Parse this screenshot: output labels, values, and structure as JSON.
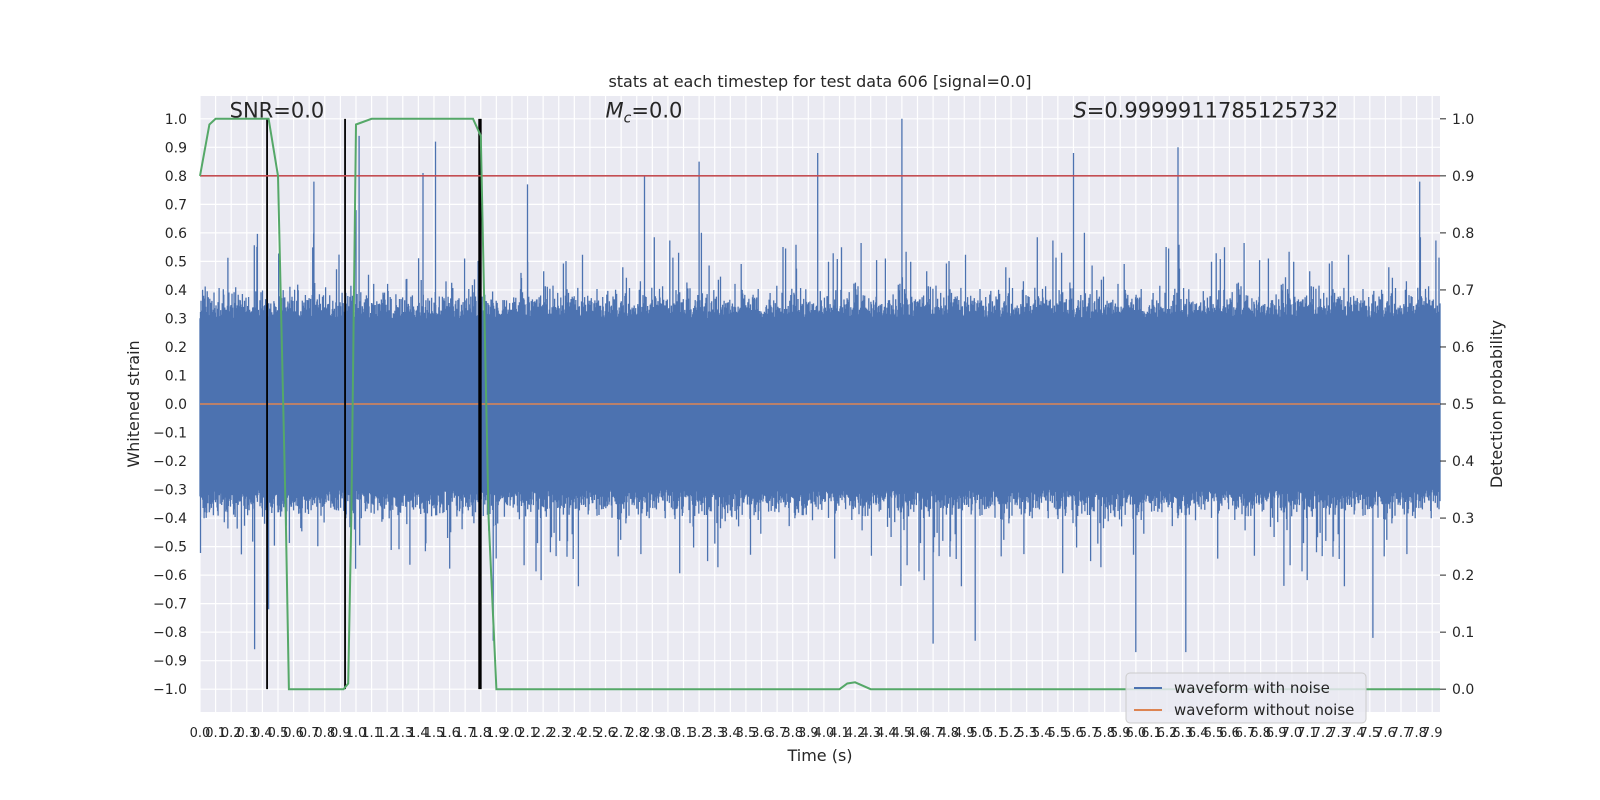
{
  "chart_data": {
    "type": "line",
    "title": "stats at each timestep for test data 606 [signal=0.0]",
    "xlabel": "Time (s)",
    "ylabel": "Whitened strain",
    "y2label": "Detection probability",
    "xlim": [
      0.0,
      7.95
    ],
    "ylim": [
      -1.08,
      1.08
    ],
    "y2lim": [
      -0.04,
      1.04
    ],
    "x_ticks": [
      0.0,
      0.1,
      0.2,
      0.3,
      0.4,
      0.5,
      0.6,
      0.7,
      0.8,
      0.9,
      1.0,
      1.1,
      1.2,
      1.3,
      1.4,
      1.5,
      1.6,
      1.7,
      1.8,
      1.9,
      2.0,
      2.1,
      2.2,
      2.3,
      2.4,
      2.5,
      2.6,
      2.7,
      2.8,
      2.9,
      3.0,
      3.1,
      3.2,
      3.3,
      3.4,
      3.5,
      3.6,
      3.7,
      3.8,
      3.9,
      4.0,
      4.1,
      4.2,
      4.3,
      4.4,
      4.5,
      4.6,
      4.7,
      4.8,
      4.9,
      5.0,
      5.1,
      5.2,
      5.3,
      5.4,
      5.5,
      5.6,
      5.7,
      5.8,
      5.9,
      6.0,
      6.1,
      6.2,
      6.3,
      6.4,
      6.5,
      6.6,
      6.7,
      6.8,
      6.9,
      7.0,
      7.1,
      7.2,
      7.3,
      7.4,
      7.5,
      7.6,
      7.7,
      7.8,
      7.9
    ],
    "x_tick_labels": [
      "0.0",
      "0.1",
      "0.2",
      "0.3",
      "0.4",
      "0.5",
      "0.6",
      "0.7",
      "0.8",
      "0.9",
      "1.0",
      "1.1",
      "1.2",
      "1.3",
      "1.4",
      "1.5",
      "1.6",
      "1.7",
      "1.8",
      "1.9",
      "2.0",
      "2.1",
      "2.2",
      "2.3",
      "2.4",
      "2.5",
      "2.6",
      "2.7",
      "2.8",
      "2.9",
      "3.0",
      "3.1",
      "3.2",
      "3.3",
      "3.4",
      "3.5",
      "3.6",
      "3.7",
      "3.8",
      "3.9",
      "4.0",
      "4.1",
      "4.2",
      "4.3",
      "4.4",
      "4.5",
      "4.6",
      "4.7",
      "4.8",
      "4.9",
      "5.0",
      "5.1",
      "5.2",
      "5.3",
      "5.4",
      "5.5",
      "5.6",
      "5.7",
      "5.8",
      "5.9",
      "6.0",
      "6.1",
      "6.2",
      "6.3",
      "6.4",
      "6.5",
      "6.6",
      "6.7",
      "6.8",
      "6.9",
      "7.0",
      "7.1",
      "7.2",
      "7.3",
      "7.4",
      "7.5",
      "7.6",
      "7.7",
      "7.8",
      "7.9"
    ],
    "y_ticks": [
      1.0,
      0.9,
      0.8,
      0.7,
      0.6,
      0.5,
      0.4,
      0.3,
      0.2,
      0.1,
      0.0,
      -0.1,
      -0.2,
      -0.3,
      -0.4,
      -0.5,
      -0.6,
      -0.7,
      -0.8,
      -0.9,
      -1.0
    ],
    "y_tick_labels": [
      "1.0",
      "0.9",
      "0.8",
      "0.7",
      "0.6",
      "0.5",
      "0.4",
      "0.3",
      "0.2",
      "0.1",
      "0.0",
      "−0.1",
      "−0.2",
      "−0.3",
      "−0.4",
      "−0.5",
      "−0.6",
      "−0.7",
      "−0.8",
      "−0.9",
      "−1.0"
    ],
    "y2_ticks": [
      1.0,
      0.9,
      0.8,
      0.7,
      0.6,
      0.5,
      0.4,
      0.3,
      0.2,
      0.1,
      0.0
    ],
    "y2_tick_labels": [
      "1.0",
      "0.9",
      "0.8",
      "0.7",
      "0.6",
      "0.5",
      "0.4",
      "0.3",
      "0.2",
      "0.1",
      "0.0"
    ],
    "annotations": [
      {
        "text": "SNR=0.0",
        "x": 0.19,
        "y": 1.03
      },
      {
        "text_html": "M_c=0.0",
        "prefix": "M",
        "subscript": "c",
        "suffix": "=0.0",
        "x": 2.6,
        "y": 1.03
      },
      {
        "prefix": "S",
        "suffix": "=0.9999911785125732",
        "x": 5.6,
        "y": 1.03
      }
    ],
    "legend": {
      "placement": "lower-right",
      "entries": [
        {
          "label": "waveform with noise",
          "color": "#4c72b0"
        },
        {
          "label": "waveform without noise",
          "color": "#dd8452"
        }
      ]
    },
    "series": [
      {
        "name": "waveform with noise",
        "axis": "left",
        "color": "#4c72b0",
        "kind": "noise-strain",
        "envelope_stats": {
          "typical_max": 0.4,
          "typical_min": -0.4,
          "peak_max": 1.0,
          "peak_min": -0.87
        },
        "peaks": [
          {
            "x": 0.44,
            "y": -0.72
          },
          {
            "x": 0.35,
            "y": -0.86
          },
          {
            "x": 1.02,
            "y": 0.94
          },
          {
            "x": 1.0,
            "y": 0.68
          },
          {
            "x": 1.43,
            "y": 0.81
          },
          {
            "x": 1.51,
            "y": 0.92
          },
          {
            "x": 0.73,
            "y": 0.78
          },
          {
            "x": 2.1,
            "y": 0.77
          },
          {
            "x": 2.85,
            "y": 0.8
          },
          {
            "x": 3.2,
            "y": 0.85
          },
          {
            "x": 3.96,
            "y": 0.88
          },
          {
            "x": 4.5,
            "y": 1.0
          },
          {
            "x": 5.6,
            "y": 0.88
          },
          {
            "x": 6.27,
            "y": 0.9
          },
          {
            "x": 7.82,
            "y": 0.78
          },
          {
            "x": 7.52,
            "y": -0.82
          },
          {
            "x": 6.0,
            "y": -0.87
          },
          {
            "x": 6.32,
            "y": -0.87
          },
          {
            "x": 4.7,
            "y": -0.84
          },
          {
            "x": 4.97,
            "y": -0.83
          },
          {
            "x": 1.88,
            "y": -0.83
          }
        ]
      },
      {
        "name": "waveform without noise",
        "axis": "left",
        "color": "#dd8452",
        "x": [
          0.0,
          7.95
        ],
        "y": [
          0.0,
          0.0
        ]
      },
      {
        "name": "detection probability",
        "axis": "right",
        "color": "#55a868",
        "x": [
          0.0,
          0.06,
          0.1,
          0.44,
          0.5,
          0.55,
          0.57,
          0.92,
          0.95,
          0.97,
          1.0,
          1.1,
          1.75,
          1.8,
          1.85,
          1.9,
          4.0,
          4.1,
          4.15,
          4.2,
          4.3,
          5.0,
          6.0,
          7.0,
          7.95
        ],
        "y": [
          0.9,
          0.99,
          1.0,
          1.0,
          0.9,
          0.3,
          0.0,
          0.0,
          0.01,
          0.3,
          0.99,
          1.0,
          1.0,
          0.97,
          0.3,
          0.0,
          0.0,
          0.0,
          0.01,
          0.012,
          0.0,
          0.0,
          0.0,
          0.0,
          0.0
        ]
      }
    ],
    "threshold": {
      "axis": "right",
      "value": 0.9,
      "color": "#c44e52"
    },
    "vlines": {
      "color": "#000000",
      "ymin": -1.0,
      "ymax": 1.0,
      "x": [
        0.43,
        0.93,
        1.79,
        1.8
      ]
    },
    "grid": true
  }
}
